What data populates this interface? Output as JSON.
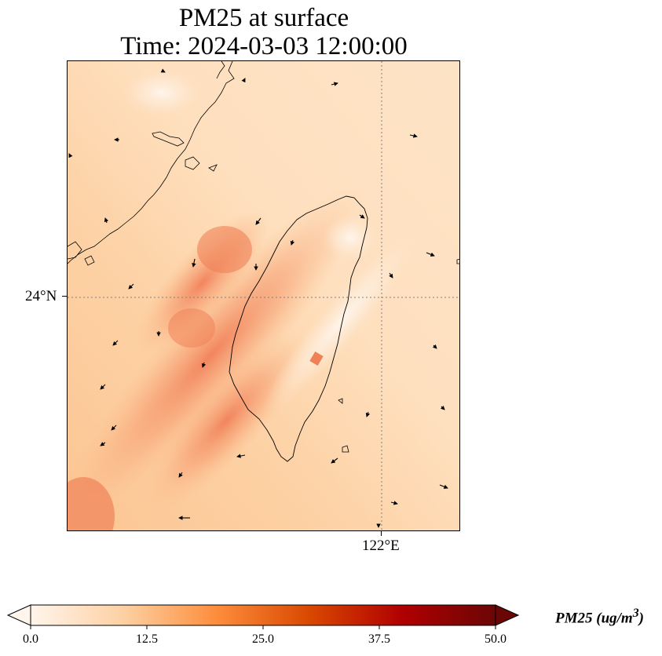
{
  "title": {
    "line1": "PM25 at surface",
    "line2": "Time: 2024-03-03 12:00:00"
  },
  "axes": {
    "lat_label": "24°N",
    "lon_label": "122°E"
  },
  "colorbar": {
    "label_name": "PM25 (ug/m",
    "label_exp": "3",
    "label_close": ")",
    "colormap": "Oranges",
    "extend": "both",
    "ticks": [
      "0.0",
      "12.5",
      "25.0",
      "37.5",
      "50.0"
    ],
    "colors": [
      "#fff5eb",
      "#fdd0a2",
      "#fd8d3c",
      "#d94801",
      "#b00000",
      "#6b0606"
    ]
  },
  "map": {
    "gridline_color": "#808080",
    "coast_color": "#000000",
    "wind_arrow_color": "#000000"
  }
}
